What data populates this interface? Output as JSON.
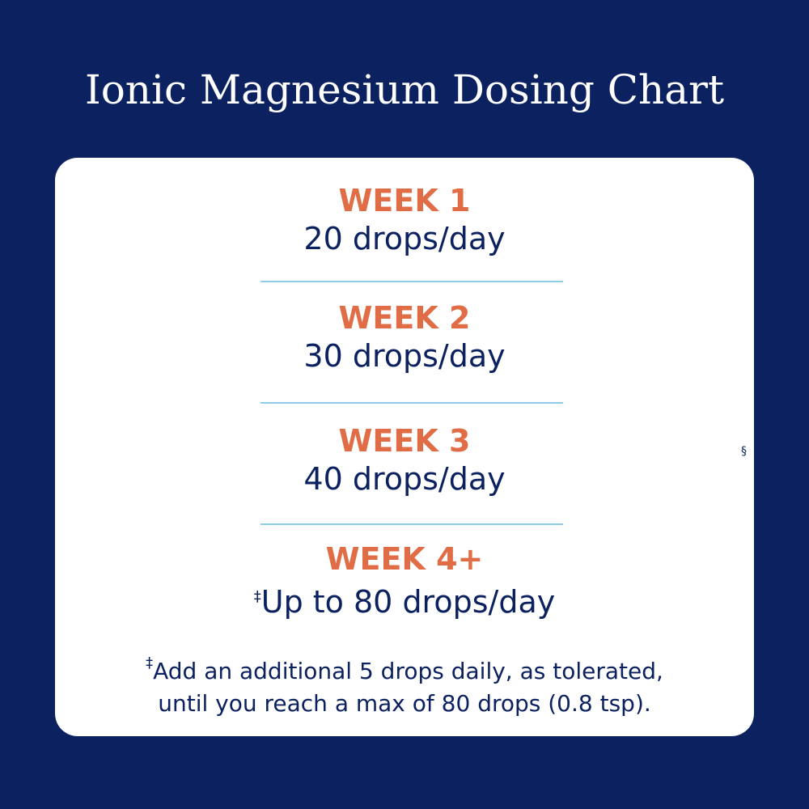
{
  "title": "Ionic Magnesium Dosing Chart",
  "weeks": [
    {
      "label": "WEEK 1",
      "dose": "20 drops/day"
    },
    {
      "label": "WEEK 2",
      "dose": "30 drops/day"
    },
    {
      "label": "WEEK 3",
      "dose": "40 drops/day"
    },
    {
      "label": "WEEK 4+",
      "dose_marker": "‡",
      "dose": "Up to 80 drops/day"
    }
  ],
  "footnote": {
    "marker": "‡",
    "line1": "Add an additional 5 drops daily, as tolerated,",
    "line2": "until you reach a max of 80 drops (0.8 tsp)."
  },
  "section_mark": "§",
  "colors": {
    "background": "#0c2160",
    "week_label": "#e06d45",
    "divider": "#8ecbea",
    "text": "#0c2160"
  }
}
